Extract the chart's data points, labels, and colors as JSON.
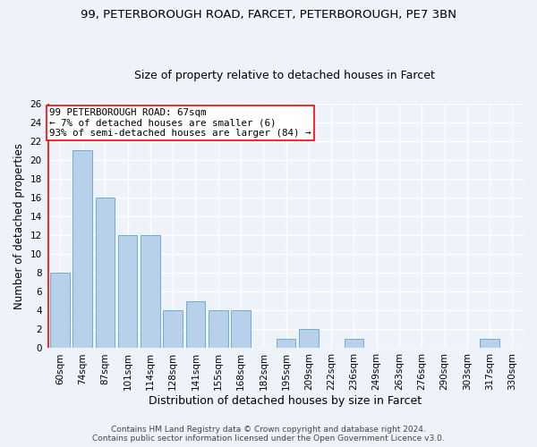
{
  "title_line1": "99, PETERBOROUGH ROAD, FARCET, PETERBOROUGH, PE7 3BN",
  "title_line2": "Size of property relative to detached houses in Farcet",
  "xlabel": "Distribution of detached houses by size in Farcet",
  "ylabel": "Number of detached properties",
  "categories": [
    "60sqm",
    "74sqm",
    "87sqm",
    "101sqm",
    "114sqm",
    "128sqm",
    "141sqm",
    "155sqm",
    "168sqm",
    "182sqm",
    "195sqm",
    "209sqm",
    "222sqm",
    "236sqm",
    "249sqm",
    "263sqm",
    "276sqm",
    "290sqm",
    "303sqm",
    "317sqm",
    "330sqm"
  ],
  "values": [
    8,
    21,
    16,
    12,
    12,
    4,
    5,
    4,
    4,
    0,
    1,
    2,
    0,
    1,
    0,
    0,
    0,
    0,
    0,
    1,
    0
  ],
  "bar_color": "#b8d0ea",
  "bar_edge_color": "#6aaed6",
  "annotation_text_line1": "99 PETERBOROUGH ROAD: 67sqm",
  "annotation_text_line2": "← 7% of detached houses are smaller (6)",
  "annotation_text_line3": "93% of semi-detached houses are larger (84) →",
  "red_line_x": -0.5,
  "ylim": [
    0,
    26
  ],
  "ytick_max": 26,
  "ytick_step": 2,
  "footer_line1": "Contains HM Land Registry data © Crown copyright and database right 2024.",
  "footer_line2": "Contains public sector information licensed under the Open Government Licence v3.0.",
  "bg_color": "#eef2f9",
  "plot_bg_color": "#eef2f9",
  "grid_color": "#ffffff",
  "title1_fontsize": 9.5,
  "title2_fontsize": 9,
  "xlabel_fontsize": 9,
  "ylabel_fontsize": 8.5,
  "annot_fontsize": 7.8,
  "tick_fontsize": 7.5,
  "footer_fontsize": 6.5
}
